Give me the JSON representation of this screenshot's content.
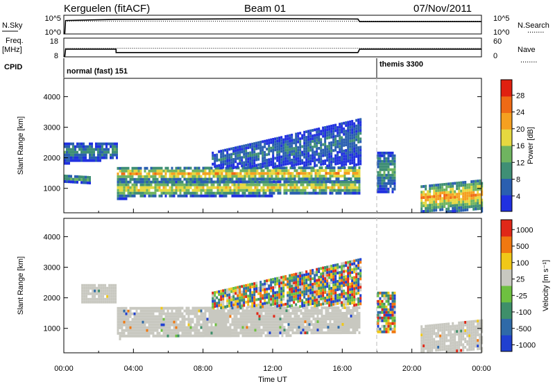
{
  "header": {
    "station": "Kerguelen (fitACF)",
    "beam": "Beam 01",
    "date": "07/Nov/2011"
  },
  "labels": {
    "nsky": "N.Sky",
    "nsearch": "N.Search",
    "freq_line1": "Freq.",
    "freq_line2": "[MHz]",
    "nave": "Nave",
    "cpid": "CPID",
    "dotted_key": "........"
  },
  "cpid_segments": [
    {
      "label": "normal (fast) 151",
      "start_hour": 0
    },
    {
      "label": "themis 3300",
      "start_hour": 18.0
    }
  ],
  "chart_data": [
    {
      "type": "line",
      "name": "noise-panel",
      "y_left_ticks": [
        "10^5",
        "10^0"
      ],
      "y_right_ticks": [
        "10^5",
        "10^0"
      ],
      "series": [
        {
          "name": "N.Sky",
          "style": "solid",
          "x": [
            0.05,
            0.1,
            3.0,
            8.0,
            12.0,
            16.9,
            17.0,
            24.0
          ],
          "y_frac": [
            0.0,
            0.72,
            0.78,
            0.8,
            0.82,
            0.8,
            0.66,
            0.66
          ]
        },
        {
          "name": "N.Search",
          "style": "dotted",
          "x": [
            0.05,
            0.1,
            24.0
          ],
          "y_frac": [
            0.0,
            0.68,
            0.68
          ]
        }
      ]
    },
    {
      "type": "line",
      "name": "frequency-panel",
      "y_left_ticks": [
        "18",
        "8"
      ],
      "y_right_ticks": [
        "60",
        "0"
      ],
      "series": [
        {
          "name": "Freq.",
          "unit": "MHz",
          "style": "solid",
          "x": [
            0.05,
            0.1,
            3.0,
            3.0,
            16.9,
            17.0,
            24.0
          ],
          "y": [
            8,
            12.1,
            12.1,
            10.3,
            10.3,
            12.1,
            12.1
          ]
        },
        {
          "name": "Nave",
          "style": "dotted",
          "x": [
            0.1,
            24.0
          ],
          "y": [
            12.6,
            12.6
          ]
        }
      ]
    },
    {
      "type": "heatmap",
      "name": "power-panel",
      "ylabel": "Slant Range [km]",
      "xlim": [
        0,
        24
      ],
      "ylim": [
        200,
        4600
      ],
      "y_ticks": [
        1000,
        2000,
        3000,
        4000
      ],
      "colorbar": {
        "label": "Power [dB]",
        "range": [
          0,
          32
        ],
        "ticks": [
          4,
          8,
          12,
          16,
          20,
          24,
          28
        ],
        "colors": [
          "#2030e0",
          "#2a5fb0",
          "#3f8f75",
          "#6fb460",
          "#e6d840",
          "#f5a020",
          "#ef6a15",
          "#e02010"
        ]
      },
      "regions": [
        {
          "t0": 3.05,
          "t1": 17.0,
          "r0_start": 1250,
          "r1_start": 1700,
          "r0_end": 1250,
          "r1_end": 1720,
          "core": 22
        },
        {
          "t0": 3.05,
          "t1": 17.0,
          "r0_start": 700,
          "r1_start": 1250,
          "r0_end": 850,
          "r1_end": 1250,
          "core": 20
        },
        {
          "t0": 0.0,
          "t1": 1.5,
          "r0_start": 1200,
          "r1_start": 1450,
          "r0_end": 1200,
          "r1_end": 1400,
          "core": 14
        },
        {
          "t0": 0.0,
          "t1": 3.0,
          "r0_start": 1850,
          "r1_start": 2500,
          "r0_end": 2000,
          "r1_end": 2500,
          "core": 10
        },
        {
          "t0": 8.5,
          "t1": 17.0,
          "r0_start": 1700,
          "r1_start": 2200,
          "r0_end": 1800,
          "r1_end": 3300,
          "core": 8
        },
        {
          "t0": 18.0,
          "t1": 19.0,
          "r0_start": 900,
          "r1_start": 2200,
          "r0_end": 900,
          "r1_end": 2200,
          "core": 12
        },
        {
          "t0": 20.5,
          "t1": 24.0,
          "r0_start": 250,
          "r1_start": 1100,
          "r0_end": 300,
          "r1_end": 1300,
          "core": 24
        }
      ]
    },
    {
      "type": "heatmap",
      "name": "velocity-panel",
      "xlabel": "Time UT",
      "ylabel": "Slant Range [km]",
      "xlim": [
        0,
        24
      ],
      "ylim": [
        200,
        4600
      ],
      "x_ticks": [
        "00:00",
        "04:00",
        "08:00",
        "12:00",
        "16:00",
        "20:00",
        "00:00"
      ],
      "y_ticks": [
        1000,
        2000,
        3000,
        4000
      ],
      "colorbar": {
        "label": "Velocity [m s⁻¹]",
        "ticks": [
          "1000",
          "500",
          "100",
          "25",
          "-25",
          "-100",
          "-500",
          "-1000"
        ],
        "colors": [
          "#2040d0",
          "#2f6aa8",
          "#3e8f6a",
          "#6ec040",
          "#c8c8c0",
          "#f0c818",
          "#f07810",
          "#e02818"
        ]
      },
      "regions": [
        {
          "t0": 3.05,
          "t1": 17.0,
          "r0_start": 700,
          "r1_start": 1700,
          "r0_end": 850,
          "r1_end": 1720,
          "mode": "grey"
        },
        {
          "t0": 1.0,
          "t1": 3.0,
          "r0_start": 1850,
          "r1_start": 2450,
          "r0_end": 1900,
          "r1_end": 2450,
          "mode": "grey"
        },
        {
          "t0": 20.5,
          "t1": 24.0,
          "r0_start": 250,
          "r1_start": 1100,
          "r0_end": 300,
          "r1_end": 1300,
          "mode": "grey"
        },
        {
          "t0": 18.0,
          "t1": 19.0,
          "r0_start": 900,
          "r1_start": 2200,
          "r0_end": 900,
          "r1_end": 2200,
          "mode": "mixed"
        },
        {
          "t0": 8.5,
          "t1": 17.0,
          "r0_start": 1700,
          "r1_start": 2200,
          "r0_end": 1800,
          "r1_end": 3300,
          "mode": "mixed"
        }
      ]
    }
  ]
}
